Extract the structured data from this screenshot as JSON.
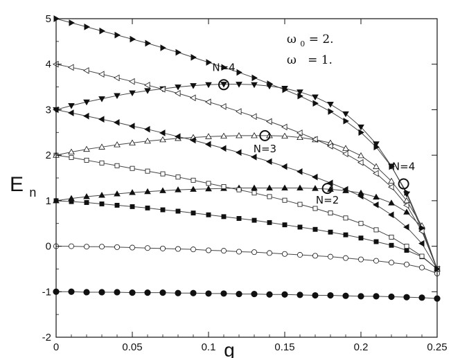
{
  "chart_data": {
    "type": "line",
    "title": "",
    "xlabel": "g",
    "ylabel_main": "E",
    "ylabel_sub": "n",
    "xlim": [
      0,
      0.25
    ],
    "ylim": [
      -2,
      5
    ],
    "xticks": [
      0,
      0.05,
      0.1,
      0.15,
      0.2,
      0.25
    ],
    "xtick_labels": [
      "0",
      "0.05",
      "0.1",
      "0.15",
      "0.2",
      "0.25"
    ],
    "yticks": [
      -2,
      -1,
      0,
      1,
      2,
      3,
      4,
      5
    ],
    "ytick_labels": [
      "-2",
      "-1",
      "0",
      "1",
      "2",
      "3",
      "4",
      "5"
    ],
    "grid": false,
    "parameters": {
      "omega0_symbol": "ω",
      "omega0_sub": "0",
      "omega0_value": " = 2.",
      "omega_symbol": "ω",
      "omega_value": "  = 1."
    },
    "annotations": [
      {
        "text": "N=4",
        "x": 0.11,
        "y": 3.55,
        "circle": true
      },
      {
        "text": "N=3",
        "x": 0.137,
        "y": 2.43,
        "circle": true
      },
      {
        "text": "N=2",
        "x": 0.178,
        "y": 1.27,
        "circle": true
      },
      {
        "text": "N=4",
        "x": 0.228,
        "y": 1.37,
        "circle": true
      }
    ],
    "series": [
      {
        "marker": "circle-filled",
        "x": [
          0,
          0.01,
          0.02,
          0.03,
          0.04,
          0.05,
          0.06,
          0.07,
          0.08,
          0.09,
          0.1,
          0.11,
          0.12,
          0.13,
          0.14,
          0.15,
          0.16,
          0.17,
          0.18,
          0.19,
          0.2,
          0.21,
          0.22,
          0.23,
          0.24,
          0.25
        ],
        "values": [
          -1,
          -1,
          -1.01,
          -1.01,
          -1.01,
          -1.02,
          -1.02,
          -1.02,
          -1.03,
          -1.03,
          -1.04,
          -1.04,
          -1.05,
          -1.05,
          -1.06,
          -1.06,
          -1.07,
          -1.08,
          -1.08,
          -1.09,
          -1.1,
          -1.1,
          -1.11,
          -1.12,
          -1.13,
          -1.15
        ]
      },
      {
        "marker": "circle-open",
        "x": [
          0,
          0.01,
          0.02,
          0.03,
          0.04,
          0.05,
          0.06,
          0.07,
          0.08,
          0.09,
          0.1,
          0.11,
          0.12,
          0.13,
          0.14,
          0.15,
          0.16,
          0.17,
          0.18,
          0.19,
          0.2,
          0.21,
          0.22,
          0.23,
          0.24,
          0.25
        ],
        "values": [
          0,
          0,
          -0.01,
          -0.01,
          -0.02,
          -0.03,
          -0.04,
          -0.05,
          -0.06,
          -0.07,
          -0.09,
          -0.1,
          -0.12,
          -0.13,
          -0.15,
          -0.17,
          -0.19,
          -0.21,
          -0.23,
          -0.26,
          -0.29,
          -0.32,
          -0.36,
          -0.4,
          -0.47,
          -0.6
        ]
      },
      {
        "marker": "square-filled",
        "x": [
          0,
          0.01,
          0.02,
          0.03,
          0.04,
          0.05,
          0.06,
          0.07,
          0.08,
          0.09,
          0.1,
          0.11,
          0.12,
          0.13,
          0.14,
          0.15,
          0.16,
          0.17,
          0.18,
          0.19,
          0.2,
          0.21,
          0.22,
          0.23,
          0.24,
          0.25
        ],
        "values": [
          1,
          0.98,
          0.96,
          0.93,
          0.9,
          0.87,
          0.84,
          0.8,
          0.77,
          0.73,
          0.69,
          0.65,
          0.61,
          0.57,
          0.52,
          0.47,
          0.42,
          0.37,
          0.31,
          0.25,
          0.18,
          0.1,
          0.02,
          -0.09,
          -0.23,
          -0.5
        ]
      },
      {
        "marker": "triangle-up-filled",
        "x": [
          0,
          0.01,
          0.02,
          0.03,
          0.04,
          0.05,
          0.06,
          0.07,
          0.08,
          0.09,
          0.1,
          0.11,
          0.12,
          0.13,
          0.14,
          0.15,
          0.16,
          0.17,
          0.18,
          0.19,
          0.2,
          0.21,
          0.22,
          0.23,
          0.24,
          0.25
        ],
        "values": [
          1,
          1.05,
          1.09,
          1.12,
          1.15,
          1.18,
          1.2,
          1.22,
          1.24,
          1.25,
          1.26,
          1.27,
          1.28,
          1.28,
          1.28,
          1.28,
          1.28,
          1.27,
          1.25,
          1.22,
          1.17,
          1.08,
          0.95,
          0.75,
          0.42,
          -0.5
        ]
      },
      {
        "marker": "square-open",
        "x": [
          0,
          0.01,
          0.02,
          0.03,
          0.04,
          0.05,
          0.06,
          0.07,
          0.08,
          0.09,
          0.1,
          0.11,
          0.12,
          0.13,
          0.14,
          0.15,
          0.16,
          0.17,
          0.18,
          0.19,
          0.2,
          0.21,
          0.22,
          0.23,
          0.24,
          0.25
        ],
        "values": [
          2,
          1.95,
          1.89,
          1.83,
          1.77,
          1.71,
          1.65,
          1.59,
          1.52,
          1.45,
          1.38,
          1.31,
          1.24,
          1.17,
          1.09,
          1.01,
          0.92,
          0.83,
          0.73,
          0.62,
          0.5,
          0.36,
          0.2,
          0.0,
          -0.22,
          -0.5
        ]
      },
      {
        "marker": "triangle-up-open",
        "x": [
          0,
          0.01,
          0.02,
          0.03,
          0.04,
          0.05,
          0.06,
          0.07,
          0.08,
          0.09,
          0.1,
          0.11,
          0.12,
          0.13,
          0.14,
          0.15,
          0.16,
          0.17,
          0.18,
          0.19,
          0.2,
          0.21,
          0.22,
          0.23,
          0.24,
          0.25
        ],
        "values": [
          2,
          2.07,
          2.13,
          2.18,
          2.23,
          2.27,
          2.31,
          2.34,
          2.37,
          2.39,
          2.41,
          2.42,
          2.43,
          2.43,
          2.43,
          2.42,
          2.39,
          2.34,
          2.27,
          2.15,
          1.99,
          1.75,
          1.43,
          1.0,
          0.45,
          -0.5
        ]
      },
      {
        "marker": "triangle-left-filled",
        "x": [
          0,
          0.01,
          0.02,
          0.03,
          0.04,
          0.05,
          0.06,
          0.07,
          0.08,
          0.09,
          0.1,
          0.11,
          0.12,
          0.13,
          0.14,
          0.15,
          0.16,
          0.17,
          0.18,
          0.19,
          0.2,
          0.21,
          0.22,
          0.23,
          0.24,
          0.25
        ],
        "values": [
          3,
          2.93,
          2.86,
          2.79,
          2.72,
          2.64,
          2.57,
          2.49,
          2.41,
          2.33,
          2.24,
          2.15,
          2.06,
          1.96,
          1.86,
          1.75,
          1.64,
          1.52,
          1.39,
          1.25,
          1.1,
          0.91,
          0.69,
          0.42,
          0.06,
          -0.5
        ]
      },
      {
        "marker": "triangle-down-filled",
        "x": [
          0,
          0.01,
          0.02,
          0.03,
          0.04,
          0.05,
          0.06,
          0.07,
          0.08,
          0.09,
          0.1,
          0.11,
          0.12,
          0.13,
          0.14,
          0.15,
          0.16,
          0.17,
          0.18,
          0.19,
          0.2,
          0.21,
          0.22,
          0.23,
          0.24,
          0.25
        ],
        "values": [
          3,
          3.09,
          3.17,
          3.24,
          3.31,
          3.37,
          3.42,
          3.46,
          3.5,
          3.53,
          3.55,
          3.56,
          3.56,
          3.55,
          3.52,
          3.47,
          3.39,
          3.28,
          3.12,
          2.91,
          2.62,
          2.25,
          1.76,
          1.15,
          0.35,
          -0.5
        ]
      },
      {
        "marker": "triangle-left-open",
        "x": [
          0,
          0.01,
          0.02,
          0.03,
          0.04,
          0.05,
          0.06,
          0.07,
          0.08,
          0.09,
          0.1,
          0.11,
          0.12,
          0.13,
          0.14,
          0.15,
          0.16,
          0.17,
          0.18,
          0.19,
          0.2,
          0.21,
          0.22,
          0.23,
          0.24,
          0.25
        ],
        "values": [
          4,
          3.93,
          3.86,
          3.78,
          3.7,
          3.62,
          3.54,
          3.45,
          3.36,
          3.26,
          3.17,
          3.07,
          2.96,
          2.85,
          2.74,
          2.62,
          2.49,
          2.35,
          2.2,
          2.03,
          1.84,
          1.6,
          1.3,
          0.9,
          0.33,
          -0.5
        ]
      },
      {
        "marker": "triangle-right-filled",
        "x": [
          0,
          0.01,
          0.02,
          0.03,
          0.04,
          0.05,
          0.06,
          0.07,
          0.08,
          0.09,
          0.1,
          0.11,
          0.12,
          0.13,
          0.14,
          0.15,
          0.16,
          0.17,
          0.18,
          0.19,
          0.2,
          0.21,
          0.22,
          0.23,
          0.24,
          0.25
        ],
        "values": [
          5,
          4.91,
          4.82,
          4.73,
          4.64,
          4.55,
          4.46,
          4.36,
          4.26,
          4.15,
          4.04,
          3.93,
          3.82,
          3.7,
          3.57,
          3.44,
          3.3,
          3.14,
          2.96,
          2.75,
          2.5,
          2.18,
          1.75,
          1.18,
          0.4,
          -0.5
        ]
      }
    ]
  }
}
